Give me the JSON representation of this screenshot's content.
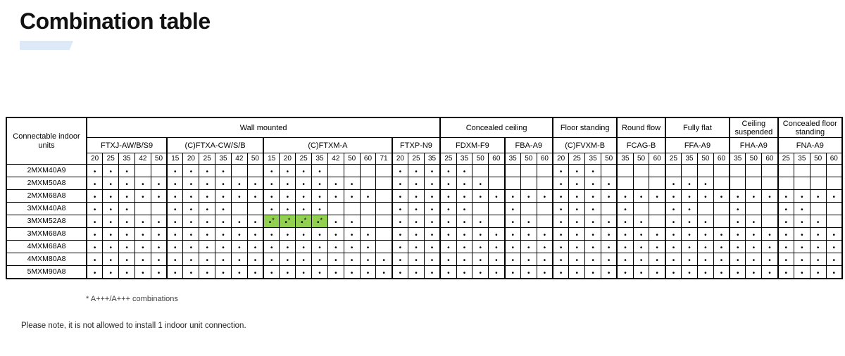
{
  "title": "Combination table",
  "colors": {
    "highlight_green": "#92d050",
    "accent_bar_blue": "#dde9f6"
  },
  "symbols": {
    "dot": "•",
    "asterisk": "*"
  },
  "footnotes": {
    "asterisk_note": "* A+++/A+++ combinations",
    "install_note": "Please note, it is not allowed to install 1 indoor unit connection."
  },
  "table": {
    "corner_header": "Connectable indoor units",
    "groups": [
      {
        "label": "Wall mounted",
        "models": [
          {
            "name": "FTXJ-AW/B/S9",
            "sizes": [
              "20",
              "25",
              "35",
              "42",
              "50"
            ]
          },
          {
            "name": "(C)FTXA-CW/S/B",
            "sizes": [
              "15",
              "20",
              "25",
              "35",
              "42",
              "50"
            ]
          },
          {
            "name": "(C)FTXM-A",
            "sizes": [
              "15",
              "20",
              "25",
              "35",
              "42",
              "50",
              "60",
              "71"
            ]
          },
          {
            "name": "FTXP-N9",
            "sizes": [
              "20",
              "25",
              "35"
            ]
          }
        ]
      },
      {
        "label": "Concealed ceiling",
        "models": [
          {
            "name": "FDXM-F9",
            "sizes": [
              "25",
              "35",
              "50",
              "60"
            ]
          },
          {
            "name": "FBA-A9",
            "sizes": [
              "35",
              "50",
              "60"
            ]
          }
        ]
      },
      {
        "label": "Floor standing",
        "models": [
          {
            "name": "(C)FVXM-B",
            "sizes": [
              "20",
              "25",
              "35",
              "50"
            ]
          }
        ]
      },
      {
        "label": "Round flow",
        "models": [
          {
            "name": "FCAG-B",
            "sizes": [
              "35",
              "50",
              "60"
            ]
          }
        ]
      },
      {
        "label": "Fully flat",
        "models": [
          {
            "name": "FFA-A9",
            "sizes": [
              "25",
              "35",
              "50",
              "60"
            ]
          }
        ]
      },
      {
        "label": "Ceiling suspended",
        "models": [
          {
            "name": "FHA-A9",
            "sizes": [
              "35",
              "50",
              "60"
            ]
          }
        ]
      },
      {
        "label": "Concealed floor standing",
        "models": [
          {
            "name": "FNA-A9",
            "sizes": [
              "25",
              "35",
              "50",
              "60"
            ]
          }
        ]
      }
    ],
    "cell_legend": {
      "0": "empty",
      "1": "dot",
      "2": "green highlighted dot with asterisk (A+++/A+++ combination)"
    },
    "rows": [
      {
        "label": "2MXM40A9",
        "cells": [
          1,
          1,
          1,
          0,
          0,
          1,
          1,
          1,
          1,
          0,
          0,
          1,
          1,
          1,
          1,
          0,
          0,
          0,
          0,
          1,
          1,
          1,
          1,
          1,
          0,
          0,
          0,
          0,
          0,
          1,
          1,
          1,
          0,
          0,
          0,
          0,
          0,
          0,
          0,
          0,
          0,
          0,
          0,
          0,
          0,
          0,
          0
        ]
      },
      {
        "label": "2MXM50A8",
        "cells": [
          1,
          1,
          1,
          1,
          1,
          1,
          1,
          1,
          1,
          1,
          1,
          1,
          1,
          1,
          1,
          1,
          1,
          0,
          0,
          1,
          1,
          1,
          1,
          1,
          1,
          0,
          0,
          0,
          0,
          1,
          1,
          1,
          1,
          0,
          0,
          0,
          1,
          1,
          1,
          0,
          0,
          0,
          0,
          0,
          0,
          0,
          0
        ]
      },
      {
        "label": "2MXM68A8",
        "cells": [
          1,
          1,
          1,
          1,
          1,
          1,
          1,
          1,
          1,
          1,
          1,
          1,
          1,
          1,
          1,
          1,
          1,
          1,
          0,
          1,
          1,
          1,
          1,
          1,
          1,
          1,
          1,
          1,
          1,
          1,
          1,
          1,
          1,
          1,
          1,
          1,
          1,
          1,
          1,
          1,
          1,
          1,
          1,
          1,
          1,
          1,
          1
        ]
      },
      {
        "label": "3MXM40A8",
        "cells": [
          1,
          1,
          1,
          0,
          0,
          1,
          1,
          1,
          1,
          0,
          0,
          1,
          1,
          1,
          1,
          0,
          0,
          0,
          0,
          1,
          1,
          1,
          1,
          1,
          0,
          0,
          1,
          0,
          0,
          1,
          1,
          1,
          0,
          1,
          0,
          0,
          1,
          1,
          0,
          0,
          1,
          0,
          0,
          1,
          1,
          0,
          0
        ]
      },
      {
        "label": "3MXM52A8",
        "cells": [
          1,
          1,
          1,
          1,
          1,
          1,
          1,
          1,
          1,
          1,
          1,
          2,
          2,
          2,
          2,
          1,
          1,
          0,
          0,
          1,
          1,
          1,
          1,
          1,
          1,
          0,
          1,
          1,
          0,
          1,
          1,
          1,
          1,
          1,
          1,
          0,
          1,
          1,
          1,
          0,
          1,
          1,
          0,
          1,
          1,
          1,
          0
        ]
      },
      {
        "label": "3MXM68A8",
        "cells": [
          1,
          1,
          1,
          1,
          1,
          1,
          1,
          1,
          1,
          1,
          1,
          1,
          1,
          1,
          1,
          1,
          1,
          1,
          0,
          1,
          1,
          1,
          1,
          1,
          1,
          1,
          1,
          1,
          1,
          1,
          1,
          1,
          1,
          1,
          1,
          1,
          1,
          1,
          1,
          1,
          1,
          1,
          1,
          1,
          1,
          1,
          1
        ]
      },
      {
        "label": "4MXM68A8",
        "cells": [
          1,
          1,
          1,
          1,
          1,
          1,
          1,
          1,
          1,
          1,
          1,
          1,
          1,
          1,
          1,
          1,
          1,
          1,
          0,
          1,
          1,
          1,
          1,
          1,
          1,
          1,
          1,
          1,
          1,
          1,
          1,
          1,
          1,
          1,
          1,
          1,
          1,
          1,
          1,
          1,
          1,
          1,
          1,
          1,
          1,
          1,
          1
        ]
      },
      {
        "label": "4MXM80A8",
        "cells": [
          1,
          1,
          1,
          1,
          1,
          1,
          1,
          1,
          1,
          1,
          1,
          1,
          1,
          1,
          1,
          1,
          1,
          1,
          1,
          1,
          1,
          1,
          1,
          1,
          1,
          1,
          1,
          1,
          1,
          1,
          1,
          1,
          1,
          1,
          1,
          1,
          1,
          1,
          1,
          1,
          1,
          1,
          1,
          1,
          1,
          1,
          1
        ]
      },
      {
        "label": "5MXM90A8",
        "cells": [
          1,
          1,
          1,
          1,
          1,
          1,
          1,
          1,
          1,
          1,
          1,
          1,
          1,
          1,
          1,
          1,
          1,
          1,
          1,
          1,
          1,
          1,
          1,
          1,
          1,
          1,
          1,
          1,
          1,
          1,
          1,
          1,
          1,
          1,
          1,
          1,
          1,
          1,
          1,
          1,
          1,
          1,
          1,
          1,
          1,
          1,
          1
        ]
      }
    ]
  }
}
